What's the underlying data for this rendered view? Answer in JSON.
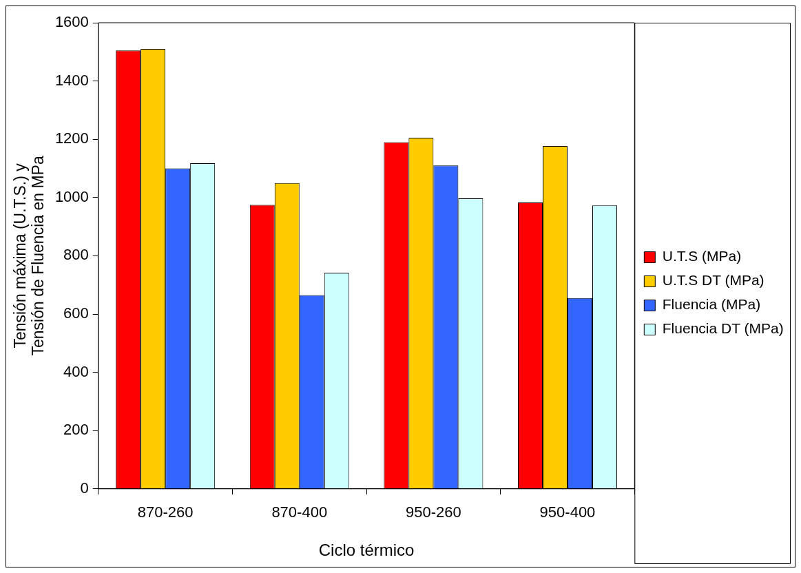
{
  "chart_data": {
    "type": "bar",
    "xlabel": "Ciclo térmico",
    "ylabel": "Tensión máxima (U.T.S.) y\nTensión de Fluencia en MPa",
    "categories": [
      "870-260",
      "870-400",
      "950-260",
      "950-400"
    ],
    "series": [
      {
        "name": "U.T.S (MPa)",
        "color": "#ff0000",
        "values": [
          1505,
          975,
          1190,
          983
        ]
      },
      {
        "name": "U.T.S DT (MPa)",
        "color": "#ffcc00",
        "values": [
          1510,
          1050,
          1205,
          1177
        ]
      },
      {
        "name": "Fluencia (MPa)",
        "color": "#3366ff",
        "values": [
          1100,
          665,
          1110,
          655
        ]
      },
      {
        "name": "Fluencia DT (MPa)",
        "color": "#ccffff",
        "values": [
          1118,
          742,
          997,
          973
        ]
      }
    ],
    "ylim": [
      0,
      1600
    ],
    "yticks": [
      0,
      200,
      400,
      600,
      800,
      1000,
      1200,
      1400,
      1600
    ],
    "grid": false,
    "legend": "right"
  }
}
